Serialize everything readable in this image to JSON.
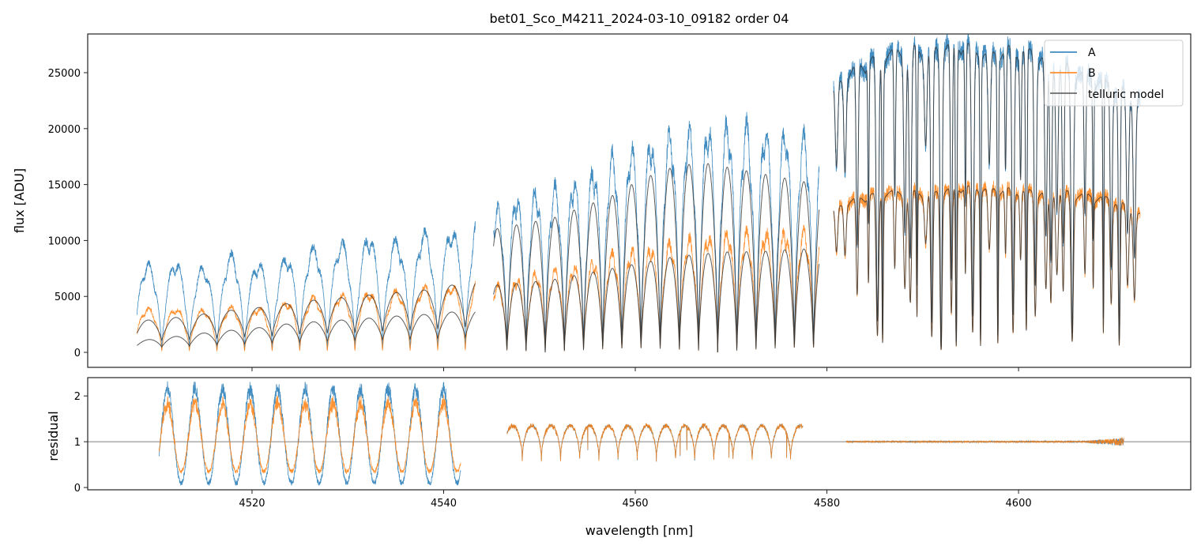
{
  "chart_data": {
    "type": "line",
    "title": "bet01_Sco_M4211_2024-03-10_09182  order 04",
    "xlabel": "wavelength [nm]",
    "xlim": [
      4502.85,
      4617.97
    ],
    "xticks": [
      4520,
      4540,
      4560,
      4580,
      4600
    ],
    "colors": {
      "A": "#1f77b4",
      "B": "#ff7f0e",
      "model": "#333333",
      "refline": "#555555"
    },
    "legend": {
      "placement": "top-right",
      "entries": [
        "A",
        "B",
        "telluric model"
      ]
    },
    "flux_panel": {
      "ylabel": "flux [ADU]",
      "ylim": [
        -1340,
        28460
      ],
      "yticks": [
        0,
        5000,
        10000,
        15000,
        20000,
        25000
      ],
      "segments": [
        {
          "x": [
            4508.0,
            4543.3
          ],
          "period": 2.88,
          "phase": 4507.7,
          "A_peaks": [
            8000,
            8000,
            8200,
            7500,
            9000,
            8000,
            8500,
            9500,
            9500,
            10500,
            10500,
            10000,
            11000,
            11000,
            12500
          ],
          "B_peaks": [
            4000,
            4000,
            4000,
            3800,
            4200,
            4000,
            4500,
            5000,
            5000,
            5500,
            5500,
            5600,
            6000,
            6000,
            6800
          ],
          "model_upper": [
            2800,
            3000,
            3200,
            3500,
            3800,
            4000,
            4300,
            4600,
            4800,
            5000,
            5200,
            5400,
            5600,
            6000,
            6500
          ],
          "model_lower": [
            1000,
            1300,
            1500,
            1800,
            2000,
            2200,
            2500,
            2700,
            2800,
            3000,
            3100,
            3300,
            3400,
            3600,
            3800
          ]
        },
        {
          "x": [
            4545.2,
            4579.2
          ],
          "period": 2.0,
          "phase": 4544.6,
          "A_peaks": [
            13000,
            14500,
            15000,
            16000,
            18000,
            19000,
            20000,
            20500,
            21000,
            20500,
            20000,
            19500
          ],
          "B_peaks": [
            6000,
            7000,
            7500,
            8000,
            9000,
            9500,
            10000,
            10500,
            11000,
            11000,
            11000,
            11000
          ],
          "model_upper": [
            11000,
            11500,
            12000,
            13000,
            14000,
            15500,
            16500,
            17000,
            16500,
            16000,
            15500,
            15000
          ],
          "model_lower": [
            6000,
            6200,
            6500,
            7000,
            7500,
            8000,
            8500,
            8800,
            9000,
            9000,
            9200,
            9300
          ]
        },
        {
          "x": [
            4580.7,
            4612.7
          ],
          "period": 2.0,
          "phase": 4580.0,
          "A_peaks": [
            24000,
            26000,
            27000,
            27500,
            27500,
            28000,
            27000,
            27500,
            27000,
            26000,
            25000,
            24000,
            23000
          ],
          "B_peaks": [
            13000,
            14000,
            14500,
            14500,
            14500,
            15000,
            14800,
            14700,
            14500,
            14500,
            14200,
            13800,
            12500
          ]
        }
      ]
    },
    "residual_panel": {
      "ylabel": "residual",
      "ylim": [
        -0.05,
        2.4
      ],
      "yticks": [
        0,
        1,
        2
      ],
      "refline": 1,
      "segments": [
        {
          "x": [
            4510.3,
            4541.8
          ],
          "period": 2.88,
          "A_range": [
            0.1,
            2.3
          ],
          "B_range": [
            0.35,
            2.0
          ]
        },
        {
          "x": [
            4546.6,
            4577.5
          ],
          "period": 2.0,
          "A_range": [
            0.6,
            1.35
          ],
          "B_range": [
            0.6,
            1.35
          ]
        },
        {
          "x": [
            4582.0,
            4611.0
          ],
          "period": 2.0,
          "A_range": [
            0.98,
            1.02
          ],
          "B_range": [
            0.98,
            1.02
          ]
        }
      ]
    }
  }
}
